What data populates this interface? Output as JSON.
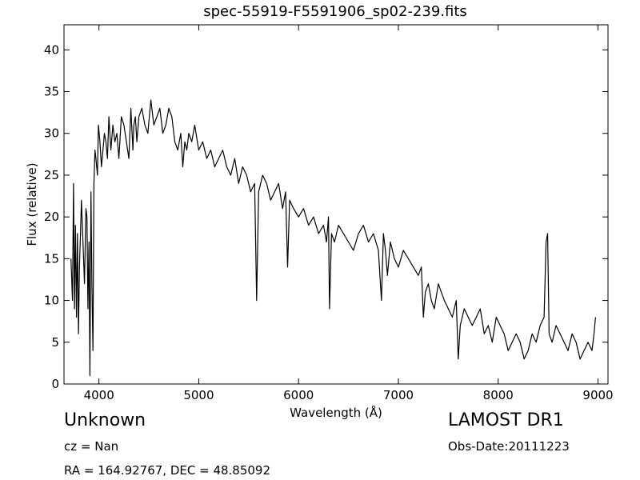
{
  "chart_data": {
    "type": "line",
    "title": "spec-55919-F5591906_sp02-239.fits",
    "xlabel": "Wavelength (Å)",
    "ylabel": "Flux (relative)",
    "xlim": [
      3650,
      9100
    ],
    "ylim": [
      0,
      43
    ],
    "xticks": [
      4000,
      5000,
      6000,
      7000,
      8000,
      9000
    ],
    "yticks": [
      0,
      5,
      10,
      15,
      20,
      25,
      30,
      35,
      40
    ],
    "grid": false,
    "legend": "none",
    "line_color": "#000000",
    "series": [
      {
        "x": [
          3720,
          3735,
          3745,
          3755,
          3765,
          3775,
          3785,
          3795,
          3805,
          3815,
          3825,
          3840,
          3855,
          3870,
          3880,
          3890,
          3900,
          3910,
          3920,
          3930,
          3940,
          3950,
          3960,
          3970,
          3985,
          3995,
          4010,
          4025,
          4040,
          4055,
          4070,
          4085,
          4100,
          4120,
          4140,
          4160,
          4180,
          4200,
          4225,
          4250,
          4275,
          4300,
          4320,
          4340,
          4350,
          4365,
          4380,
          4400,
          4430,
          4460,
          4490,
          4520,
          4550,
          4580,
          4610,
          4640,
          4670,
          4700,
          4730,
          4760,
          4790,
          4820,
          4840,
          4860,
          4880,
          4900,
          4930,
          4960,
          5000,
          5040,
          5080,
          5120,
          5160,
          5200,
          5240,
          5280,
          5320,
          5360,
          5400,
          5440,
          5480,
          5520,
          5560,
          5580,
          5600,
          5640,
          5680,
          5720,
          5760,
          5800,
          5840,
          5870,
          5890,
          5910,
          5950,
          6000,
          6050,
          6100,
          6150,
          6200,
          6250,
          6280,
          6300,
          6310,
          6330,
          6360,
          6400,
          6450,
          6500,
          6550,
          6600,
          6650,
          6700,
          6750,
          6800,
          6830,
          6850,
          6870,
          6890,
          6920,
          6960,
          7000,
          7050,
          7100,
          7150,
          7200,
          7230,
          7250,
          7270,
          7300,
          7330,
          7360,
          7400,
          7430,
          7460,
          7500,
          7540,
          7580,
          7600,
          7620,
          7640,
          7660,
          7700,
          7740,
          7780,
          7820,
          7860,
          7900,
          7940,
          7980,
          8020,
          8060,
          8100,
          8140,
          8180,
          8220,
          8260,
          8300,
          8340,
          8380,
          8420,
          8460,
          8480,
          8495,
          8510,
          8540,
          8580,
          8620,
          8660,
          8700,
          8740,
          8780,
          8820,
          8860,
          8900,
          8940,
          8960,
          8975
        ],
        "y": [
          15,
          10,
          24,
          9,
          19,
          8,
          18,
          6,
          14,
          18,
          22,
          17,
          12,
          21,
          20,
          9,
          17,
          1,
          23,
          12,
          4,
          24,
          28,
          27,
          25,
          31,
          29,
          26,
          28,
          30,
          29,
          27,
          32,
          28,
          31,
          29,
          30,
          27,
          32,
          31,
          29,
          27,
          33,
          28,
          31,
          32,
          29,
          32,
          33,
          31,
          30,
          34,
          31,
          32,
          33,
          30,
          31,
          33,
          32,
          29,
          28,
          30,
          26,
          29,
          28,
          30,
          29,
          31,
          28,
          29,
          27,
          28,
          26,
          27,
          28,
          26,
          25,
          27,
          24,
          26,
          25,
          23,
          24,
          10,
          23,
          25,
          24,
          22,
          23,
          24,
          21,
          23,
          14,
          22,
          21,
          20,
          21,
          19,
          20,
          18,
          19,
          17,
          20,
          9,
          18,
          17,
          19,
          18,
          17,
          16,
          18,
          19,
          17,
          18,
          16,
          10,
          18,
          16,
          13,
          17,
          15,
          14,
          16,
          15,
          14,
          13,
          14,
          8,
          11,
          12,
          10,
          9,
          12,
          11,
          10,
          9,
          8,
          10,
          3,
          7,
          8,
          9,
          8,
          7,
          8,
          9,
          6,
          7,
          5,
          8,
          7,
          6,
          4,
          5,
          6,
          5,
          3,
          4,
          6,
          5,
          7,
          8,
          17,
          18,
          6,
          5,
          7,
          6,
          5,
          4,
          6,
          5,
          3,
          4,
          5,
          4,
          6,
          8
        ]
      }
    ]
  },
  "info": {
    "object_class": "Unknown",
    "survey": "LAMOST DR1",
    "redshift": "cz = Nan",
    "obs_date": "Obs-Date:20111223",
    "coords": "RA = 164.92767, DEC = 48.85092"
  }
}
